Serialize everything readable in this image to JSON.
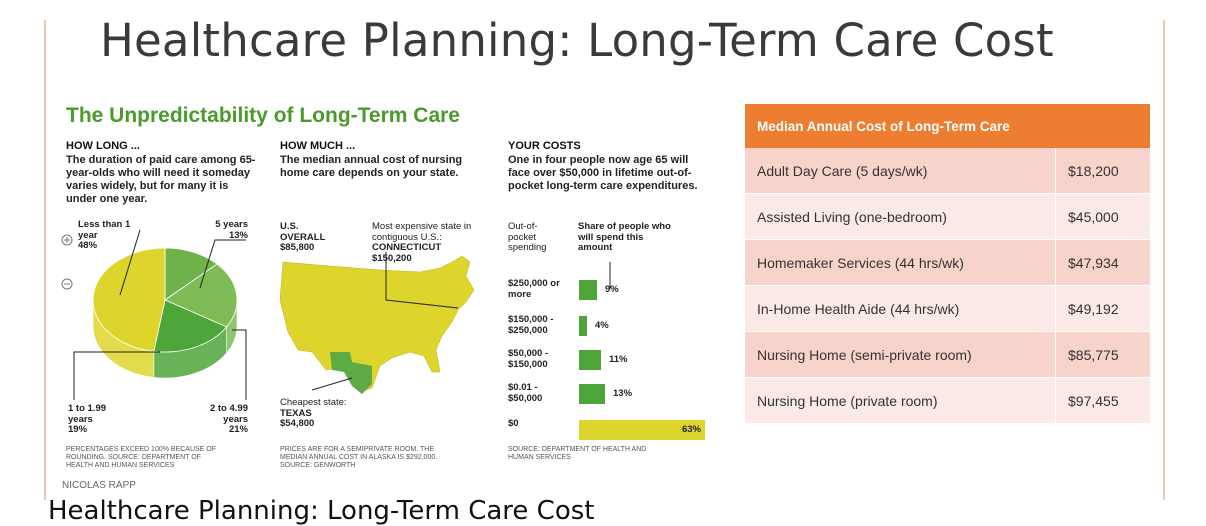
{
  "slide_title": "Healthcare Planning: Long-Term Care Cost",
  "infographic": {
    "title": "The Unpredictability of Long-Term Care",
    "how_long": {
      "heading": "HOW LONG ...",
      "text": "The duration of paid care among 65-year-olds who will need it someday varies widely, but for many it is under one year.",
      "chart": {
        "type": "pie",
        "categories": [
          "5 years",
          "2 to 4.99 years",
          "1 to 1.99 years",
          "Less than 1 year"
        ],
        "values": [
          13,
          21,
          19,
          48
        ],
        "value_labels": [
          "13%",
          "21%",
          "19%",
          "48%"
        ],
        "colors": [
          "#6fb24a",
          "#7dbb55",
          "#4ea53a",
          "#ddd52c"
        ]
      },
      "note": "Percentages exceed 100% because of rounding. Source: Department of Health and Human Services"
    },
    "how_much": {
      "heading": "HOW MUCH ...",
      "text": "The median annual cost of nursing home care depends on your state.",
      "us_label": "U.S. OVERALL",
      "us_value": "$85,800",
      "max_caption": "Most expensive state in contiguous U.S.:",
      "max_state": "CONNECTICUT",
      "max_value": "$150,200",
      "min_caption": "Cheapest state:",
      "min_state": "TEXAS",
      "min_value": "$54,800",
      "note": "Prices are for a semiprivate room. The median annual cost in Alaska is $292,000. Source: Genworth"
    },
    "your_costs": {
      "heading": "YOUR COSTS",
      "text": "One in four people now age 65 will face over $50,000 in lifetime out-of-pocket long-term care expenditures.",
      "col_spending": "Out-of-pocket spending",
      "col_share": "Share of people who will spend this amount",
      "chart": {
        "type": "bar",
        "categories": [
          "$250,000 or more",
          "$150,000 - $250,000",
          "$50,000 - $150,000",
          "$0.01 - $50,000",
          "$0"
        ],
        "values": [
          9,
          4,
          11,
          13,
          63
        ],
        "value_labels": [
          "9%",
          "4%",
          "11%",
          "13%",
          "63%"
        ],
        "colors": [
          "#4ea53a",
          "#4ea53a",
          "#4ea53a",
          "#4ea53a",
          "#ddd52c"
        ]
      },
      "note": "Source: Department of Health and Human Services"
    },
    "credit": "NICOLAS RAPP"
  },
  "table": {
    "header": "Median Annual Cost of Long-Term Care",
    "rows": [
      [
        "Adult Day Care (5 days/wk)",
        "$18,200"
      ],
      [
        "Assisted Living (one-bedroom)",
        "$45,000"
      ],
      [
        "Homemaker Services (44 hrs/wk)",
        "$47,934"
      ],
      [
        "In-Home Health Aide (44 hrs/wk)",
        "$49,192"
      ],
      [
        "Nursing Home (semi-private room)",
        "$85,775"
      ],
      [
        "Nursing Home (private room)",
        "$97,455"
      ]
    ]
  },
  "caption": "Healthcare Planning: Long-Term Care Cost"
}
